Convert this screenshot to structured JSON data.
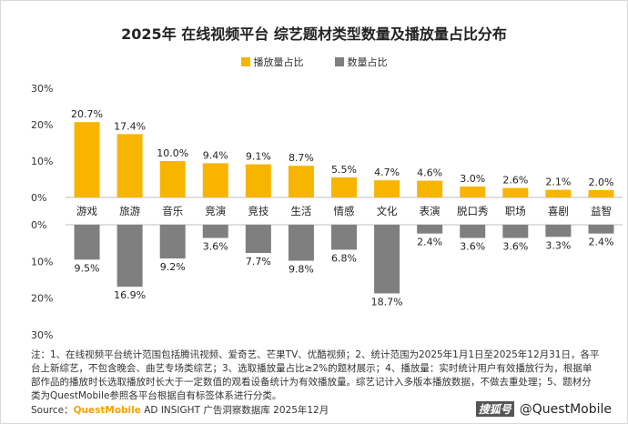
{
  "title": "2025年 在线视频平台 综艺题材类型数量及播放量占比分布",
  "legend": {
    "play": "播放量占比",
    "count": "数量占比"
  },
  "colors": {
    "play": "#f7b500",
    "count": "#7f7f7f"
  },
  "note": "注：1、在线视频平台统计范围包括腾讯视频、爱奇艺、芒果TV、优酷视频；2、统计范围为2025年1月1日至2025年12月31日，各平台上新综艺，不包含晚会、曲艺专场类综艺；3、选取播放量占比≥2%的题材展示；4、播放量：实时统计用户有效播放行为，根据单部作品的播放时长选取播放时长大于一定数值的观看设备统计为有效播放量。综艺记计入多版本播放数据，不做去重处理；5、题材分类为QuestMobile参照各平台根据自有标签体系进行分类。",
  "source": {
    "prefix": "Source：",
    "brand": "QuestMobile",
    "rest": " AD INSIGHT 广告洞察数据库 2025年12月"
  },
  "watermark": {
    "logo": "搜狐号",
    "handle": "@QuestMobile"
  },
  "chart_data": {
    "type": "bar",
    "categories": [
      "游戏",
      "旅游",
      "音乐",
      "竞演",
      "竞技",
      "生活",
      "情感",
      "文化",
      "表演",
      "脱口秀",
      "职场",
      "喜剧",
      "益智"
    ],
    "series": [
      {
        "name": "播放量占比",
        "values": [
          20.7,
          17.4,
          10.0,
          9.4,
          9.1,
          8.7,
          5.5,
          4.7,
          4.6,
          3.0,
          2.6,
          2.1,
          2.0
        ],
        "labels": [
          "20.7%",
          "17.4%",
          "10.0%",
          "9.4%",
          "9.1%",
          "8.7%",
          "5.5%",
          "4.7%",
          "4.6%",
          "3.0%",
          "2.6%",
          "2.1%",
          "2.0%"
        ]
      },
      {
        "name": "数量占比",
        "values": [
          9.5,
          16.9,
          9.2,
          3.6,
          7.7,
          9.8,
          6.8,
          18.7,
          2.4,
          3.6,
          3.6,
          3.3,
          2.4
        ],
        "labels": [
          "9.5%",
          "16.9%",
          "9.2%",
          "3.6%",
          "7.7%",
          "9.8%",
          "6.8%",
          "18.7%",
          "2.4%",
          "3.6%",
          "3.6%",
          "3.3%",
          "2.4%"
        ]
      }
    ],
    "top_ticks": [
      "30%",
      "20%",
      "10%",
      "0%"
    ],
    "bottom_ticks": [
      "0%",
      "10%",
      "20%",
      "30%"
    ],
    "ylim": [
      0,
      30
    ]
  }
}
